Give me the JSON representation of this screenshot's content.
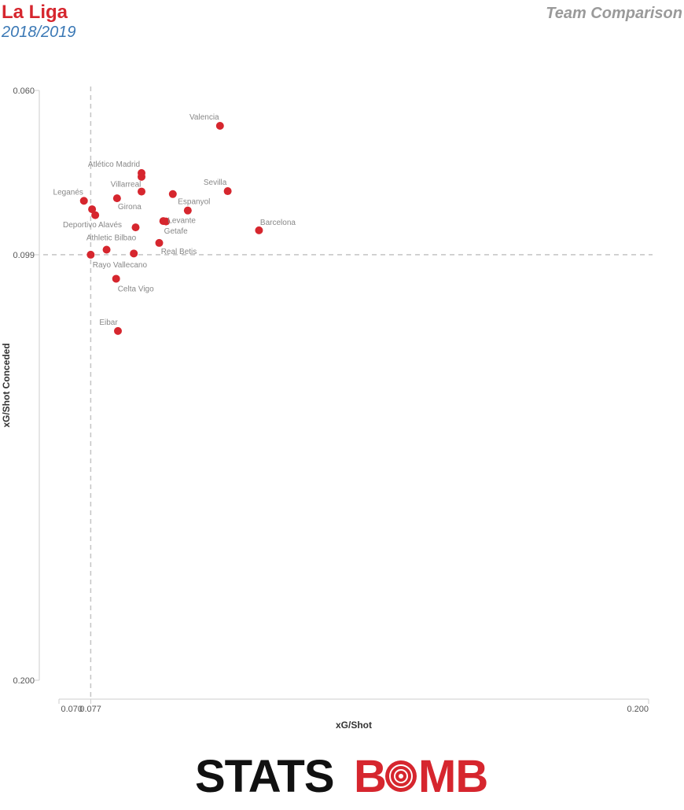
{
  "header": {
    "title": "La Liga",
    "subtitle": "2018/2019",
    "comparison": "Team Comparison"
  },
  "colors": {
    "title": "#d6262e",
    "subtitle": "#3a78b5",
    "point": "#d6262e",
    "label": "#888888",
    "axis": "#cccccc",
    "reference_line": "#c4c4c4"
  },
  "chart_data": {
    "type": "scatter",
    "xlabel": "xG/Shot",
    "ylabel": "xG/Shot Conceded",
    "xlim": [
      0.07,
      0.2
    ],
    "ylim": [
      0.06,
      0.2
    ],
    "y_inverted": true,
    "x_ticks": [
      "0.070",
      "0.077",
      "0.200"
    ],
    "y_ticks": [
      "0.060",
      "0.099",
      "0.200"
    ],
    "reference_lines": {
      "x": 0.077,
      "y": 0.099
    },
    "grid": false,
    "points": [
      {
        "team": "Valencia",
        "x": 0.1055,
        "y": 0.0684
      },
      {
        "team": "Atlético Madrid",
        "x": 0.0882,
        "y": 0.0796
      },
      {
        "team": "",
        "x": 0.0882,
        "y": 0.0805
      },
      {
        "team": "Villarreal",
        "x": 0.0882,
        "y": 0.084
      },
      {
        "team": "Sevilla",
        "x": 0.1072,
        "y": 0.0839
      },
      {
        "team": "",
        "x": 0.0951,
        "y": 0.0846
      },
      {
        "team": "Leganés",
        "x": 0.0755,
        "y": 0.0862
      },
      {
        "team": "Girona",
        "x": 0.0828,
        "y": 0.0856
      },
      {
        "team": "",
        "x": 0.0773,
        "y": 0.0882
      },
      {
        "team": "Espanyol",
        "x": 0.0984,
        "y": 0.0885
      },
      {
        "team": "",
        "x": 0.078,
        "y": 0.0896
      },
      {
        "team": "Levante",
        "x": 0.0936,
        "y": 0.0911
      },
      {
        "team": "Barcelona",
        "x": 0.1141,
        "y": 0.0932
      },
      {
        "team": "Deportivo Alavés",
        "x": 0.0869,
        "y": 0.0925
      },
      {
        "team": "Getafe",
        "x": 0.093,
        "y": 0.091
      },
      {
        "team": "Athletic Bilbao",
        "x": 0.0805,
        "y": 0.0978
      },
      {
        "team": "Real Betis",
        "x": 0.0921,
        "y": 0.0962
      },
      {
        "team": "",
        "x": 0.0865,
        "y": 0.0987
      },
      {
        "team": "Rayo Vallecano",
        "x": 0.077,
        "y": 0.099
      },
      {
        "team": "Celta Vigo",
        "x": 0.0826,
        "y": 0.1047
      },
      {
        "team": "Eibar",
        "x": 0.083,
        "y": 0.1171
      }
    ]
  },
  "logo": {
    "part1": "STATS",
    "part2": "B",
    "part3": "MB"
  }
}
